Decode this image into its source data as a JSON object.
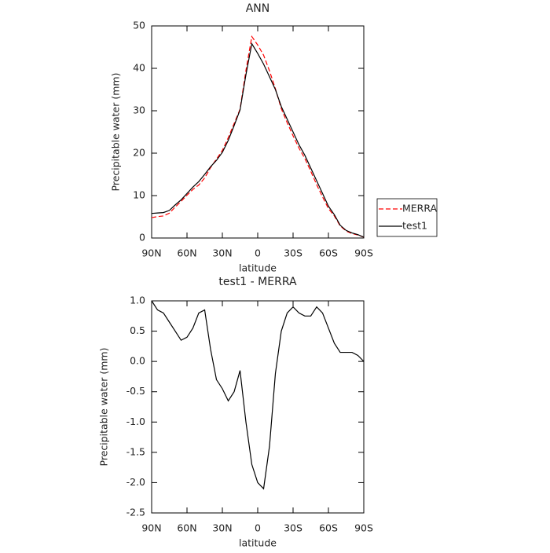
{
  "chart_data": [
    {
      "type": "line",
      "title": "ANN",
      "x_label": "latitude",
      "y_label": "Precipitable water (mm)",
      "x": [
        90,
        85,
        80,
        75,
        70,
        65,
        60,
        55,
        50,
        45,
        40,
        35,
        30,
        25,
        20,
        15,
        10,
        5,
        0,
        -5,
        -10,
        -15,
        -20,
        -25,
        -30,
        -35,
        -40,
        -45,
        -50,
        -55,
        -60,
        -65,
        -70,
        -75,
        -80,
        -85,
        -90
      ],
      "xlim": [
        90,
        -90
      ],
      "xticks": [
        {
          "value": 90,
          "label": "90N"
        },
        {
          "value": 60,
          "label": "60N"
        },
        {
          "value": 30,
          "label": "30N"
        },
        0,
        {
          "value": -30,
          "label": "30S"
        },
        {
          "value": -60,
          "label": "60S"
        },
        {
          "value": -90,
          "label": "90S"
        }
      ],
      "ylim": [
        0,
        50
      ],
      "yticks": [
        0,
        10,
        20,
        30,
        40,
        50
      ],
      "legend_position": "outside-right",
      "series": [
        {
          "name": "MERRA",
          "color": "#ff0000",
          "dashed": true,
          "values": [
            4.8,
            5.05,
            5.2,
            5.85,
            7.3,
            8.65,
            10.1,
            11.45,
            12.5,
            14.15,
            16.6,
            18.6,
            20.65,
            23.65,
            27,
            30.35,
            39.5,
            47.5,
            45.5,
            43.1,
            39.4,
            35.2,
            30.5,
            27.2,
            24.1,
            21.2,
            18.75,
            15.75,
            12.6,
            9.7,
            6.95,
            5.2,
            2.85,
            1.65,
            1.05,
            0.7,
            0.2
          ]
        },
        {
          "name": "test1",
          "color": "#000000",
          "dashed": false,
          "values": [
            5.8,
            5.9,
            6.0,
            6.5,
            7.8,
            9.0,
            10.5,
            12,
            13.3,
            15,
            16.8,
            18.3,
            20.2,
            23,
            26.5,
            30.2,
            38.5,
            45.8,
            43.5,
            41,
            38,
            35,
            31,
            28,
            25,
            22,
            19.5,
            16.5,
            13.5,
            10.5,
            7.5,
            5.5,
            3,
            1.8,
            1.2,
            0.8,
            0.2
          ]
        }
      ]
    },
    {
      "type": "line",
      "title": "test1 - MERRA",
      "x_label": "latitude",
      "y_label": "Precipitable water (mm)",
      "x": [
        90,
        85,
        80,
        75,
        70,
        65,
        60,
        55,
        50,
        45,
        40,
        35,
        30,
        25,
        20,
        15,
        10,
        5,
        0,
        -5,
        -10,
        -15,
        -20,
        -25,
        -30,
        -35,
        -40,
        -45,
        -50,
        -55,
        -60,
        -65,
        -70,
        -75,
        -80,
        -85,
        -90
      ],
      "xlim": [
        90,
        -90
      ],
      "xticks": [
        {
          "value": 90,
          "label": "90N"
        },
        {
          "value": 60,
          "label": "60N"
        },
        {
          "value": 30,
          "label": "30N"
        },
        0,
        {
          "value": -30,
          "label": "30S"
        },
        {
          "value": -60,
          "label": "60S"
        },
        {
          "value": -90,
          "label": "90S"
        }
      ],
      "ylim": [
        -2.5,
        1
      ],
      "yticks": [
        {
          "value": 1,
          "label": "1.0"
        },
        0.5,
        {
          "value": 0,
          "label": "0.0"
        },
        -0.5,
        {
          "value": -1,
          "label": "-1.0"
        },
        -1.5,
        {
          "value": -2,
          "label": "-2.0"
        },
        -2.5
      ],
      "series": [
        {
          "color": "#000000",
          "dashed": false,
          "values": [
            1.0,
            0.85,
            0.8,
            0.65,
            0.5,
            0.35,
            0.4,
            0.55,
            0.8,
            0.85,
            0.2,
            -0.3,
            -0.45,
            -0.65,
            -0.5,
            -0.15,
            -1.0,
            -1.7,
            -2.0,
            -2.1,
            -1.4,
            -0.2,
            0.5,
            0.8,
            0.9,
            0.8,
            0.75,
            0.75,
            0.9,
            0.8,
            0.55,
            0.3,
            0.15,
            0.15,
            0.15,
            0.1,
            0.0
          ]
        }
      ]
    }
  ]
}
